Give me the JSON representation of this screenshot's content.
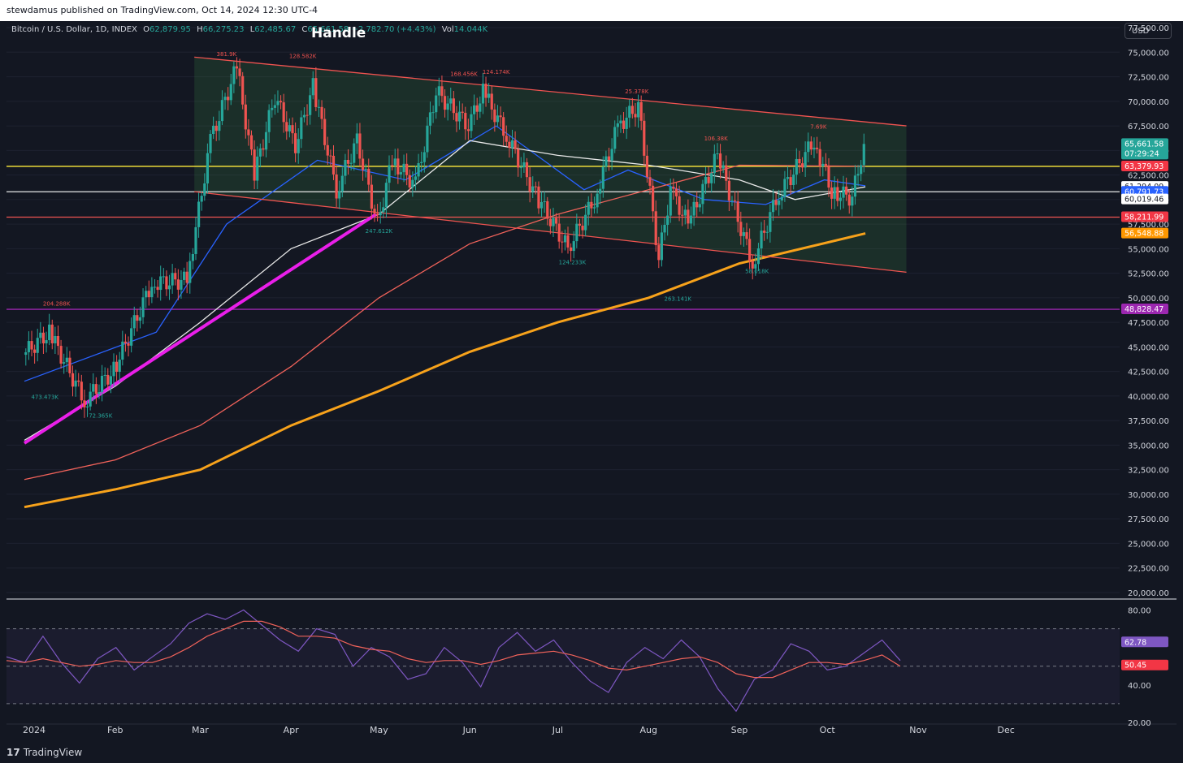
{
  "header": {
    "published_by": "stewdamus published on TradingView.com, Oct 14, 2024 12:30 UTC-4",
    "usd_button": "USD"
  },
  "legend": {
    "symbol": "Bitcoin / U.S. Dollar, 1D, INDEX",
    "open_label": "O",
    "open": "62,879.95",
    "high_label": "H",
    "high": "66,275.23",
    "low_label": "L",
    "low": "62,485.67",
    "close_label": "C",
    "close": "65,661.58",
    "change": "+2,782.70 (+4.43%)",
    "vol_label": "Vol",
    "volume": "14.044K"
  },
  "annotation": {
    "handle": "Handle"
  },
  "footer": {
    "brand": "TradingView"
  },
  "colors": {
    "background": "#131722",
    "up": "#26a69a",
    "down": "#ef5350",
    "ema_blue": "#2962ff",
    "ma_white": "#e8e8e8",
    "ma_red": "#f0625a",
    "ma_orange": "#f7a21b",
    "trend_magenta": "#e91ee9",
    "yellow_level": "#ffeb3b",
    "purple_level": "#9c27b0",
    "rsi": "#7e57c2"
  },
  "chart_data": [
    {
      "type": "candlestick",
      "title": "Bitcoin / U.S. Dollar, 1D, INDEX",
      "x_ticks": [
        "2024",
        "Feb",
        "Mar",
        "Apr",
        "May",
        "Jun",
        "Jul",
        "Aug",
        "Sep",
        "Oct",
        "Nov",
        "Dec"
      ],
      "y_ticks": [
        "77,500.00",
        "75,000.00",
        "72,500.00",
        "70,000.00",
        "67,500.00",
        "65,000.00",
        "62,500.00",
        "60,000.00",
        "57,500.00",
        "55,000.00",
        "52,500.00",
        "50,000.00",
        "47,500.00",
        "45,000.00",
        "42,500.00",
        "40,000.00",
        "37,500.00",
        "35,000.00",
        "32,500.00",
        "30,000.00",
        "27,500.00",
        "25,000.00",
        "22,500.00",
        "20,000.00"
      ],
      "ylim": [
        19500,
        78000
      ],
      "price_path": [
        [
          "2024-01-01",
          44200
        ],
        [
          "2024-01-10",
          46500
        ],
        [
          "2024-01-22",
          39500
        ],
        [
          "2024-02-01",
          42600
        ],
        [
          "2024-02-14",
          51500
        ],
        [
          "2024-02-26",
          51800
        ],
        [
          "2024-03-05",
          66000
        ],
        [
          "2024-03-14",
          73500
        ],
        [
          "2024-03-20",
          62500
        ],
        [
          "2024-03-27",
          70500
        ],
        [
          "2024-04-03",
          65500
        ],
        [
          "2024-04-09",
          71500
        ],
        [
          "2024-04-17",
          61000
        ],
        [
          "2024-04-24",
          66000
        ],
        [
          "2024-05-01",
          57500
        ],
        [
          "2024-05-06",
          64000
        ],
        [
          "2024-05-14",
          61500
        ],
        [
          "2024-05-21",
          71000
        ],
        [
          "2024-06-01",
          67500
        ],
        [
          "2024-06-06",
          71000
        ],
        [
          "2024-06-14",
          66500
        ],
        [
          "2024-06-24",
          60500
        ],
        [
          "2024-07-05",
          55000
        ],
        [
          "2024-07-14",
          60000
        ],
        [
          "2024-07-22",
          67500
        ],
        [
          "2024-07-29",
          69500
        ],
        [
          "2024-08-05",
          54000
        ],
        [
          "2024-08-09",
          61000
        ],
        [
          "2024-08-15",
          57500
        ],
        [
          "2024-08-25",
          64500
        ],
        [
          "2024-09-01",
          58000
        ],
        [
          "2024-09-06",
          53500
        ],
        [
          "2024-09-14",
          60000
        ],
        [
          "2024-09-27",
          66000
        ],
        [
          "2024-10-03",
          60800
        ],
        [
          "2024-10-10",
          60200
        ],
        [
          "2024-10-14",
          65661.58
        ]
      ],
      "moving_averages": [
        {
          "color": "ema_blue",
          "points": [
            [
              "2024-01-01",
              41500
            ],
            [
              "2024-02-15",
              46500
            ],
            [
              "2024-03-10",
              57500
            ],
            [
              "2024-04-10",
              64000
            ],
            [
              "2024-05-10",
              62000
            ],
            [
              "2024-06-10",
              67500
            ],
            [
              "2024-07-10",
              61000
            ],
            [
              "2024-07-25",
              63000
            ],
            [
              "2024-08-20",
              60000
            ],
            [
              "2024-09-10",
              59500
            ],
            [
              "2024-09-30",
              62000
            ],
            [
              "2024-10-14",
              61400
            ]
          ]
        },
        {
          "color": "ma_white",
          "points": [
            [
              "2024-01-01",
              35500
            ],
            [
              "2024-02-01",
              41000
            ],
            [
              "2024-03-01",
              47500
            ],
            [
              "2024-04-01",
              55000
            ],
            [
              "2024-05-01",
              58500
            ],
            [
              "2024-06-01",
              66000
            ],
            [
              "2024-07-01",
              64500
            ],
            [
              "2024-08-01",
              63500
            ],
            [
              "2024-09-01",
              62000
            ],
            [
              "2024-09-20",
              60000
            ],
            [
              "2024-10-14",
              61294.09
            ]
          ]
        },
        {
          "color": "ma_red",
          "points": [
            [
              "2024-01-01",
              31500
            ],
            [
              "2024-02-01",
              33500
            ],
            [
              "2024-03-01",
              37000
            ],
            [
              "2024-04-01",
              43000
            ],
            [
              "2024-05-01",
              50000
            ],
            [
              "2024-06-01",
              55500
            ],
            [
              "2024-07-01",
              58500
            ],
            [
              "2024-08-01",
              61000
            ],
            [
              "2024-09-01",
              63500
            ],
            [
              "2024-10-14",
              63379.93
            ]
          ]
        },
        {
          "color": "ma_orange",
          "points": [
            [
              "2024-01-01",
              28700
            ],
            [
              "2024-02-01",
              30500
            ],
            [
              "2024-03-01",
              32500
            ],
            [
              "2024-04-01",
              37000
            ],
            [
              "2024-05-01",
              40500
            ],
            [
              "2024-06-01",
              44500
            ],
            [
              "2024-07-01",
              47500
            ],
            [
              "2024-08-01",
              50000
            ],
            [
              "2024-09-01",
              53500
            ],
            [
              "2024-10-14",
              56548.88
            ]
          ]
        }
      ],
      "trendlines": [
        {
          "color": "trend_magenta",
          "from": [
            "2024-01-01",
            35200
          ],
          "to": [
            "2024-04-30",
            58500
          ]
        },
        {
          "color": "down",
          "from": [
            "2024-02-28",
            74500
          ],
          "to": [
            "2024-10-28",
            67500
          ]
        },
        {
          "color": "down",
          "from": [
            "2024-02-28",
            60800
          ],
          "to": [
            "2024-10-28",
            52600
          ]
        }
      ],
      "horizontal_levels": [
        {
          "price": 63379.93,
          "color": "yellow_level"
        },
        {
          "price": 60791.73,
          "color": "ma_white"
        },
        {
          "price": 58211.99,
          "color": "down"
        },
        {
          "price": 48828.47,
          "color": "purple_level"
        }
      ],
      "price_labels": [
        {
          "text": "65,661.58",
          "sub": "07:29:24",
          "price": 65661.58,
          "bg": "#26a69a"
        },
        {
          "text": "63,379.93",
          "price": 63379.93,
          "bg": "#f23645"
        },
        {
          "text": "61,294.09",
          "price": 61294.09,
          "bg": "#ffffff"
        },
        {
          "text": "60,791.73",
          "price": 60791.73,
          "bg": "#2962ff"
        },
        {
          "text": "60,019.46",
          "price": 60019.46,
          "bg": "#ffffff"
        },
        {
          "text": "58,211.99",
          "price": 58211.99,
          "bg": "#f23645"
        },
        {
          "text": "56,548.88",
          "price": 56548.88,
          "bg": "#ff9800"
        },
        {
          "text": "48,828.47",
          "price": 48828.47,
          "bg": "#9c27b0"
        }
      ],
      "volume_labels": [
        {
          "text": "381.9K",
          "date": "2024-03-10",
          "price": 74600,
          "side": "down"
        },
        {
          "text": "128.582K",
          "date": "2024-04-05",
          "price": 74400,
          "side": "down"
        },
        {
          "text": "168.456K",
          "date": "2024-05-30",
          "price": 72600,
          "side": "down"
        },
        {
          "text": "124.174K",
          "date": "2024-06-10",
          "price": 72800,
          "side": "down"
        },
        {
          "text": "25.378K",
          "date": "2024-07-28",
          "price": 70800,
          "side": "down"
        },
        {
          "text": "106.38K",
          "date": "2024-08-24",
          "price": 66000,
          "side": "down"
        },
        {
          "text": "7.69K",
          "date": "2024-09-28",
          "price": 67200,
          "side": "down"
        },
        {
          "text": "204.288K",
          "date": "2024-01-12",
          "price": 49200,
          "side": "down"
        },
        {
          "text": "473.473K",
          "date": "2024-01-08",
          "price": 39700,
          "side": "up"
        },
        {
          "text": "72.365K",
          "date": "2024-01-27",
          "price": 37800,
          "side": "up"
        },
        {
          "text": "247.612K",
          "date": "2024-05-01",
          "price": 56600,
          "side": "up"
        },
        {
          "text": "124.233K",
          "date": "2024-07-06",
          "price": 53400,
          "side": "up"
        },
        {
          "text": "263.141K",
          "date": "2024-08-11",
          "price": 49700,
          "side": "up"
        },
        {
          "text": "58.018K",
          "date": "2024-09-07",
          "price": 52500,
          "side": "up"
        }
      ]
    },
    {
      "type": "line",
      "title": "RSI",
      "y_ticks": [
        "80.00",
        "40.00",
        "20.00"
      ],
      "ylim": [
        20,
        85
      ],
      "bands": [
        70,
        50,
        30
      ],
      "series": [
        {
          "color": "rsi",
          "values": [
            55,
            52,
            66,
            52,
            41,
            54,
            60,
            48,
            55,
            62,
            73,
            78,
            75,
            80,
            72,
            64,
            58,
            70,
            67,
            50,
            60,
            55,
            43,
            46,
            60,
            52,
            39,
            60,
            68,
            58,
            64,
            52,
            42,
            36,
            52,
            60,
            54,
            64,
            55,
            38,
            26,
            43,
            48,
            62,
            58,
            48,
            50,
            57,
            64,
            53
          ]
        },
        {
          "color": "ma_red",
          "values": [
            53,
            52,
            54,
            52,
            50,
            51,
            53,
            52,
            52,
            55,
            60,
            66,
            70,
            74,
            74,
            71,
            66,
            66,
            65,
            61,
            59,
            58,
            54,
            52,
            53,
            53,
            51,
            53,
            56,
            57,
            58,
            56,
            53,
            49,
            48,
            50,
            52,
            54,
            55,
            52,
            46,
            44,
            44,
            48,
            52,
            52,
            51,
            53,
            56,
            50
          ]
        }
      ],
      "price_labels": [
        {
          "text": "62.78",
          "value": 62.78,
          "bg": "#7e57c2"
        },
        {
          "text": "50.45",
          "value": 50.45,
          "bg": "#f23645"
        }
      ]
    }
  ]
}
